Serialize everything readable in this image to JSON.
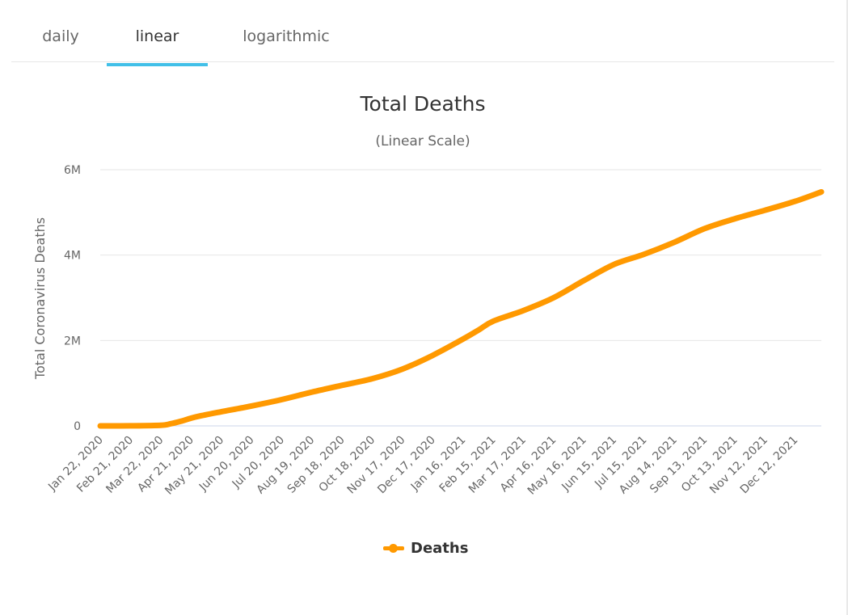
{
  "tabs": [
    {
      "label": "daily",
      "active": false
    },
    {
      "label": "linear",
      "active": true
    },
    {
      "label": "logarithmic",
      "active": false
    }
  ],
  "colors": {
    "series": "#ff9900",
    "tab_accent": "#42c0e8",
    "grid": "#e6e6e6",
    "axis_line": "#ccd6eb"
  },
  "chart_data": {
    "type": "line",
    "title": "Total Deaths",
    "subtitle": "(Linear Scale)",
    "ylabel": "Total Coronavirus Deaths",
    "xlabel": "",
    "ylim": [
      0,
      6000000
    ],
    "yticks": [
      {
        "value": 0,
        "label": "0"
      },
      {
        "value": 2000000,
        "label": "2M"
      },
      {
        "value": 4000000,
        "label": "4M"
      },
      {
        "value": 6000000,
        "label": "6M"
      }
    ],
    "x_range": [
      "2020-01-22",
      "2022-01-07"
    ],
    "x_tick_labels": [
      {
        "date": "2020-01-22",
        "label": "Jan 22, 2020"
      },
      {
        "date": "2020-02-21",
        "label": "Feb 21, 2020"
      },
      {
        "date": "2020-03-22",
        "label": "Mar 22, 2020"
      },
      {
        "date": "2020-04-21",
        "label": "Apr 21, 2020"
      },
      {
        "date": "2020-05-21",
        "label": "May 21, 2020"
      },
      {
        "date": "2020-06-20",
        "label": "Jun 20, 2020"
      },
      {
        "date": "2020-07-20",
        "label": "Jul 20, 2020"
      },
      {
        "date": "2020-08-19",
        "label": "Aug 19, 2020"
      },
      {
        "date": "2020-09-18",
        "label": "Sep 18, 2020"
      },
      {
        "date": "2020-10-18",
        "label": "Oct 18, 2020"
      },
      {
        "date": "2020-11-17",
        "label": "Nov 17, 2020"
      },
      {
        "date": "2020-12-17",
        "label": "Dec 17, 2020"
      },
      {
        "date": "2021-01-16",
        "label": "Jan 16, 2021"
      },
      {
        "date": "2021-02-15",
        "label": "Feb 15, 2021"
      },
      {
        "date": "2021-03-17",
        "label": "Mar 17, 2021"
      },
      {
        "date": "2021-04-16",
        "label": "Apr 16, 2021"
      },
      {
        "date": "2021-05-16",
        "label": "May 16, 2021"
      },
      {
        "date": "2021-06-15",
        "label": "Jun 15, 2021"
      },
      {
        "date": "2021-07-15",
        "label": "Jul 15, 2021"
      },
      {
        "date": "2021-08-14",
        "label": "Aug 14, 2021"
      },
      {
        "date": "2021-09-13",
        "label": "Sep 13, 2021"
      },
      {
        "date": "2021-10-13",
        "label": "Oct 13, 2021"
      },
      {
        "date": "2021-11-12",
        "label": "Nov 12, 2021"
      },
      {
        "date": "2021-12-12",
        "label": "Dec 12, 2021"
      }
    ],
    "series": [
      {
        "name": "Deaths",
        "color": "#ff9900",
        "points": [
          [
            "2020-01-22",
            17
          ],
          [
            "2020-02-21",
            2250
          ],
          [
            "2020-03-22",
            15000
          ],
          [
            "2020-04-01",
            50000
          ],
          [
            "2020-04-11",
            108000
          ],
          [
            "2020-04-21",
            180000
          ],
          [
            "2020-05-01",
            237000
          ],
          [
            "2020-05-21",
            330000
          ],
          [
            "2020-06-20",
            465000
          ],
          [
            "2020-07-20",
            615000
          ],
          [
            "2020-08-19",
            790000
          ],
          [
            "2020-09-18",
            950000
          ],
          [
            "2020-10-18",
            1105000
          ],
          [
            "2020-11-17",
            1330000
          ],
          [
            "2020-12-17",
            1650000
          ],
          [
            "2021-01-16",
            2030000
          ],
          [
            "2021-02-01",
            2250000
          ],
          [
            "2021-02-15",
            2450000
          ],
          [
            "2021-03-17",
            2700000
          ],
          [
            "2021-04-16",
            3000000
          ],
          [
            "2021-05-16",
            3400000
          ],
          [
            "2021-06-15",
            3780000
          ],
          [
            "2021-07-15",
            4020000
          ],
          [
            "2021-08-14",
            4300000
          ],
          [
            "2021-09-13",
            4620000
          ],
          [
            "2021-10-13",
            4850000
          ],
          [
            "2021-11-12",
            5050000
          ],
          [
            "2021-12-12",
            5260000
          ],
          [
            "2022-01-07",
            5480000
          ]
        ]
      }
    ],
    "grid": true,
    "legend_position": "bottom-center"
  }
}
